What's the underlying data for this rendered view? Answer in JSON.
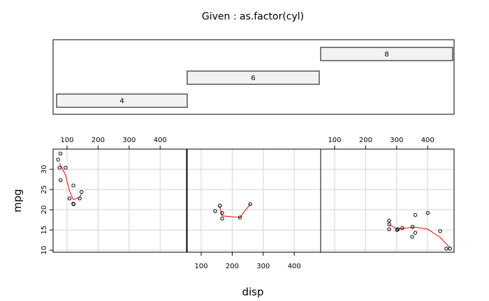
{
  "chart_data": {
    "type": "scatter",
    "title": "Given : as.factor(cyl)",
    "xlabel": "disp",
    "ylabel": "mpg",
    "xlim": [
      55,
      485
    ],
    "ylim": [
      9.5,
      35
    ],
    "x_ticks": [
      100,
      200,
      300,
      400
    ],
    "y_ticks": [
      10,
      15,
      20,
      25,
      30
    ],
    "grid": true,
    "smoother": true,
    "given": {
      "levels": [
        "4",
        "6",
        "8"
      ]
    },
    "panels": [
      {
        "level": "4",
        "points": [
          {
            "x": 78.7,
            "y": 33.9
          },
          {
            "x": 75.7,
            "y": 30.4
          },
          {
            "x": 71.1,
            "y": 32.4
          },
          {
            "x": 79.0,
            "y": 27.3
          },
          {
            "x": 95.1,
            "y": 30.4
          },
          {
            "x": 108.0,
            "y": 22.8
          },
          {
            "x": 120.3,
            "y": 26.0
          },
          {
            "x": 120.1,
            "y": 21.5
          },
          {
            "x": 121.0,
            "y": 21.4
          },
          {
            "x": 140.8,
            "y": 22.8
          },
          {
            "x": 146.7,
            "y": 24.4
          }
        ],
        "smooth": [
          {
            "x": 75.7,
            "y": 31.5
          },
          {
            "x": 95.1,
            "y": 28.6
          },
          {
            "x": 108.0,
            "y": 24.7
          },
          {
            "x": 120.3,
            "y": 22.5
          },
          {
            "x": 140.8,
            "y": 23.1
          },
          {
            "x": 146.7,
            "y": 24.0
          }
        ]
      },
      {
        "level": "6",
        "points": [
          {
            "x": 145.0,
            "y": 19.7
          },
          {
            "x": 160.0,
            "y": 21.0
          },
          {
            "x": 160.0,
            "y": 21.0
          },
          {
            "x": 167.6,
            "y": 19.2
          },
          {
            "x": 167.6,
            "y": 17.8
          },
          {
            "x": 225.0,
            "y": 18.1
          },
          {
            "x": 258.0,
            "y": 21.4
          }
        ],
        "smooth": [
          {
            "x": 160.0,
            "y": 20.8
          },
          {
            "x": 167.6,
            "y": 18.5
          },
          {
            "x": 225.0,
            "y": 18.1
          },
          {
            "x": 258.0,
            "y": 21.4
          }
        ]
      },
      {
        "level": "8",
        "points": [
          {
            "x": 275.8,
            "y": 16.4
          },
          {
            "x": 275.8,
            "y": 17.3
          },
          {
            "x": 275.8,
            "y": 15.2
          },
          {
            "x": 301.0,
            "y": 15.0
          },
          {
            "x": 304.0,
            "y": 15.2
          },
          {
            "x": 318.0,
            "y": 15.5
          },
          {
            "x": 350.0,
            "y": 13.3
          },
          {
            "x": 351.0,
            "y": 15.8
          },
          {
            "x": 360.0,
            "y": 18.7
          },
          {
            "x": 360.0,
            "y": 14.3
          },
          {
            "x": 400.0,
            "y": 19.2
          },
          {
            "x": 440.0,
            "y": 14.7
          },
          {
            "x": 460.0,
            "y": 10.4
          },
          {
            "x": 472.0,
            "y": 10.4
          }
        ],
        "smooth": [
          {
            "x": 275.8,
            "y": 16.3
          },
          {
            "x": 301.0,
            "y": 15.3
          },
          {
            "x": 318.0,
            "y": 15.4
          },
          {
            "x": 350.0,
            "y": 15.6
          },
          {
            "x": 360.0,
            "y": 15.7
          },
          {
            "x": 400.0,
            "y": 15.2
          },
          {
            "x": 440.0,
            "y": 13.2
          },
          {
            "x": 472.0,
            "y": 10.6
          }
        ]
      }
    ]
  }
}
